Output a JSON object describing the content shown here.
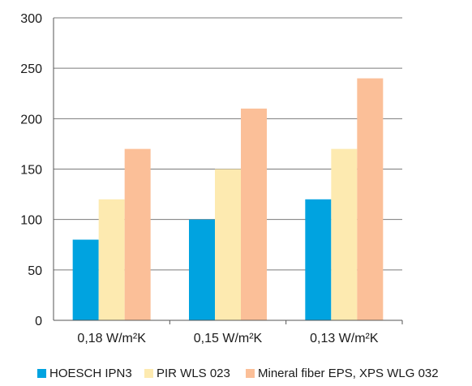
{
  "chart_data": {
    "type": "bar",
    "categories": [
      "0,18 W/m²K",
      "0,15 W/m²K",
      "0,13 W/m²K"
    ],
    "series": [
      {
        "name": "HOESCH IPN3",
        "values": [
          80,
          100,
          120
        ],
        "color": "#00a3e0"
      },
      {
        "name": "PIR WLS 023",
        "values": [
          120,
          150,
          170
        ],
        "color": "#fdeab0"
      },
      {
        "name": "Mineral fiber EPS, XPS WLG 032",
        "values": [
          170,
          210,
          240
        ],
        "color": "#fbbf98"
      }
    ],
    "yticks": [
      0,
      50,
      100,
      150,
      200,
      250,
      300
    ],
    "ylim": [
      0,
      300
    ],
    "grid": true,
    "legend": "bottom"
  }
}
